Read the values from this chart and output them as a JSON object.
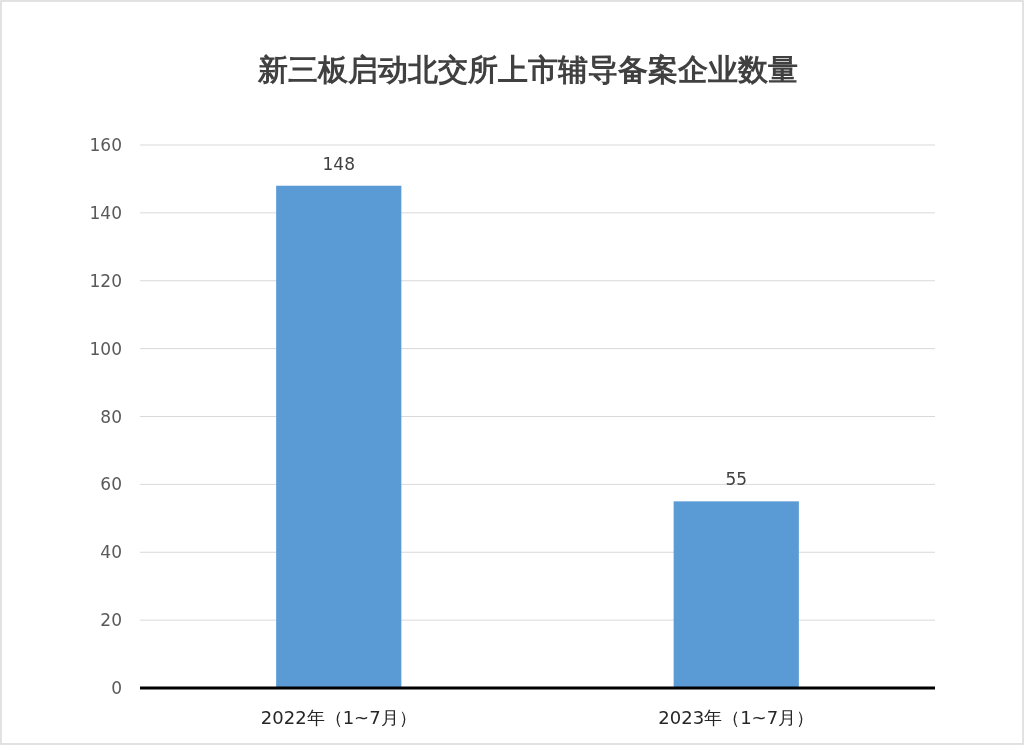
{
  "chart_data": {
    "type": "bar",
    "title": "新三板启动北交所上市辅导备案企业数量",
    "categories": [
      "2022年（1~7月）",
      "2023年（1~7月）"
    ],
    "values": [
      148,
      55
    ],
    "color": "#5b9bd5",
    "ylim": [
      0,
      160
    ],
    "yticks": [
      0,
      20,
      40,
      60,
      80,
      100,
      120,
      140,
      160
    ],
    "grid": "y",
    "data_labels": true
  }
}
